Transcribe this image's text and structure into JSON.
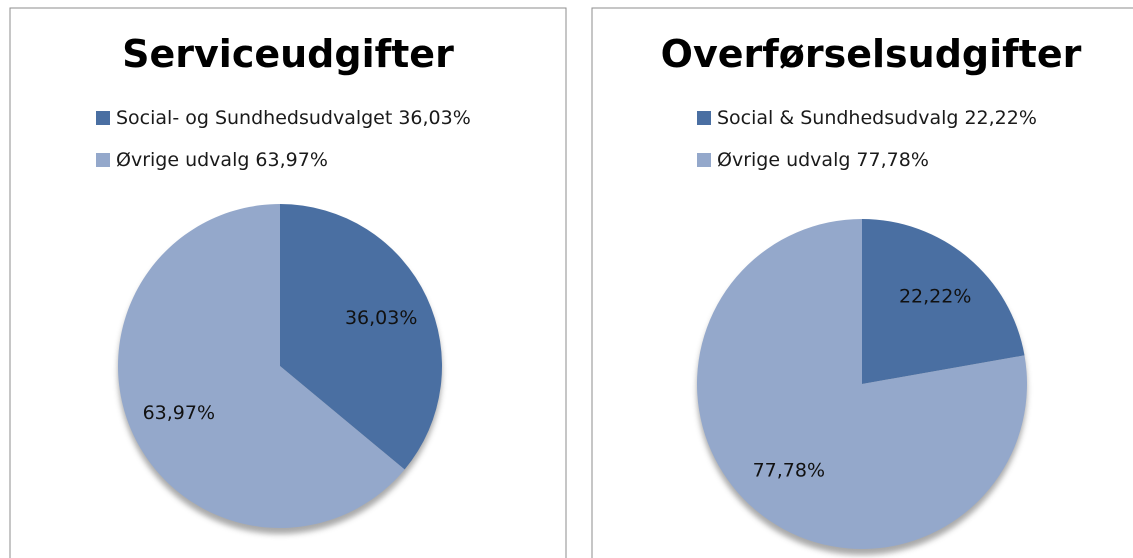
{
  "chart_data": [
    {
      "type": "pie",
      "title": "Serviceudgifter",
      "categories": [
        "Social- og Sundhedsudvalget",
        "Øvrige udvalg"
      ],
      "values": [
        36.03,
        63.97
      ],
      "value_labels": [
        "36,03%",
        "63,97%"
      ],
      "colors": [
        "#4a6fa2",
        "#94a8cb"
      ],
      "legend": "top"
    },
    {
      "type": "pie",
      "title": "Overførselsudgifter",
      "categories": [
        "Social & Sundhedsudvalg",
        "Øvrige udvalg"
      ],
      "values": [
        22.22,
        77.78
      ],
      "value_labels": [
        "22,22%",
        "77,78%"
      ],
      "colors": [
        "#4a6fa2",
        "#94a8cb"
      ],
      "legend": "top"
    }
  ]
}
